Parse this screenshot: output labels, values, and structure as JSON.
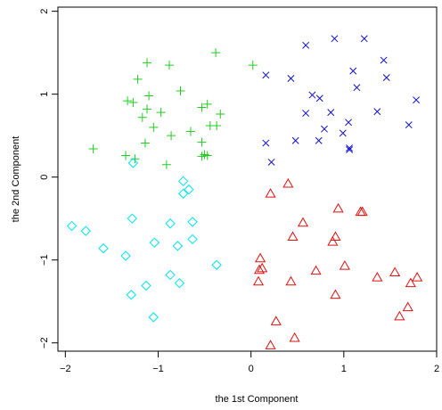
{
  "chart_data": {
    "type": "scatter",
    "xlabel": "the 1st Component",
    "ylabel": "the 2nd Component",
    "xlim": [
      -2.08,
      2.0
    ],
    "ylim": [
      -2.1,
      2.05
    ],
    "xticks": [
      -2,
      -1,
      0,
      1,
      2
    ],
    "yticks": [
      -2,
      -1,
      0,
      1,
      2
    ],
    "xtick_labels": [
      "−2",
      "−1",
      "0",
      "1",
      "2"
    ],
    "ytick_labels": [
      "−2",
      "−1",
      "0",
      "1",
      "2"
    ],
    "grid": false,
    "series": [
      {
        "marker": "plus",
        "color": "#22cc22",
        "points": [
          [
            -1.12,
            1.38
          ],
          [
            -0.88,
            1.35
          ],
          [
            -0.38,
            1.5
          ],
          [
            0.02,
            1.35
          ],
          [
            -1.22,
            1.18
          ],
          [
            -0.76,
            1.04
          ],
          [
            -1.1,
            0.98
          ],
          [
            -1.33,
            0.92
          ],
          [
            -1.27,
            0.9
          ],
          [
            -1.12,
            0.82
          ],
          [
            -0.97,
            0.78
          ],
          [
            -0.53,
            0.84
          ],
          [
            -0.47,
            0.88
          ],
          [
            -0.33,
            0.76
          ],
          [
            -1.17,
            0.72
          ],
          [
            -1.05,
            0.6
          ],
          [
            -0.44,
            0.62
          ],
          [
            -0.37,
            0.62
          ],
          [
            -0.65,
            0.55
          ],
          [
            -0.86,
            0.5
          ],
          [
            -1.14,
            0.41
          ],
          [
            -0.53,
            0.42
          ],
          [
            -1.7,
            0.34
          ],
          [
            -0.5,
            0.27
          ],
          [
            -0.53,
            0.25
          ],
          [
            -0.47,
            0.26
          ],
          [
            -1.35,
            0.26
          ],
          [
            -1.25,
            0.22
          ],
          [
            -0.91,
            0.15
          ]
        ]
      },
      {
        "marker": "x",
        "color": "#1111cc",
        "points": [
          [
            0.9,
            1.67
          ],
          [
            1.22,
            1.67
          ],
          [
            0.59,
            1.59
          ],
          [
            1.43,
            1.41
          ],
          [
            1.1,
            1.28
          ],
          [
            0.16,
            1.23
          ],
          [
            0.43,
            1.19
          ],
          [
            1.46,
            1.2
          ],
          [
            1.14,
            1.08
          ],
          [
            0.66,
            0.99
          ],
          [
            0.74,
            0.95
          ],
          [
            1.78,
            0.93
          ],
          [
            0.86,
            0.78
          ],
          [
            1.36,
            0.79
          ],
          [
            0.59,
            0.77
          ],
          [
            1.05,
            0.66
          ],
          [
            1.7,
            0.63
          ],
          [
            0.79,
            0.58
          ],
          [
            0.99,
            0.53
          ],
          [
            0.48,
            0.44
          ],
          [
            0.73,
            0.44
          ],
          [
            0.16,
            0.41
          ],
          [
            1.06,
            0.35
          ],
          [
            1.06,
            0.33
          ],
          [
            0.22,
            0.18
          ]
        ]
      },
      {
        "marker": "diamond",
        "color": "#00e5ee",
        "points": [
          [
            -0.73,
            -0.05
          ],
          [
            -1.27,
            0.17
          ],
          [
            -0.67,
            -0.15
          ],
          [
            -0.73,
            -0.2
          ],
          [
            -1.28,
            -0.5
          ],
          [
            -0.87,
            -0.56
          ],
          [
            -0.63,
            -0.54
          ],
          [
            -1.93,
            -0.59
          ],
          [
            -1.78,
            -0.65
          ],
          [
            -0.63,
            -0.75
          ],
          [
            -1.04,
            -0.79
          ],
          [
            -0.79,
            -0.83
          ],
          [
            -1.59,
            -0.86
          ],
          [
            -1.35,
            -0.95
          ],
          [
            -0.37,
            -1.06
          ],
          [
            -0.87,
            -1.18
          ],
          [
            -1.13,
            -1.31
          ],
          [
            -0.77,
            -1.28
          ],
          [
            -1.29,
            -1.42
          ],
          [
            -1.05,
            -1.69
          ]
        ]
      },
      {
        "marker": "triangle",
        "color": "#dd1111",
        "points": [
          [
            0.4,
            -0.08
          ],
          [
            0.21,
            -0.2
          ],
          [
            0.94,
            -0.38
          ],
          [
            1.18,
            -0.42
          ],
          [
            1.2,
            -0.42
          ],
          [
            0.56,
            -0.55
          ],
          [
            0.45,
            -0.72
          ],
          [
            0.91,
            -0.72
          ],
          [
            0.88,
            -0.78
          ],
          [
            0.1,
            -0.98
          ],
          [
            1.01,
            -1.07
          ],
          [
            0.12,
            -1.1
          ],
          [
            0.09,
            -1.12
          ],
          [
            0.7,
            -1.13
          ],
          [
            1.55,
            -1.15
          ],
          [
            1.36,
            -1.21
          ],
          [
            1.79,
            -1.21
          ],
          [
            1.72,
            -1.28
          ],
          [
            0.08,
            -1.26
          ],
          [
            0.43,
            -1.26
          ],
          [
            0.91,
            -1.42
          ],
          [
            1.69,
            -1.57
          ],
          [
            1.6,
            -1.68
          ],
          [
            0.27,
            -1.74
          ],
          [
            0.47,
            -1.94
          ],
          [
            0.21,
            -2.03
          ]
        ]
      }
    ]
  }
}
